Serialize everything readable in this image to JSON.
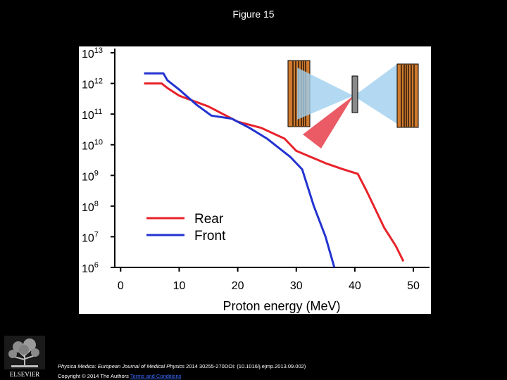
{
  "figure_title": "Figure 15",
  "logo_text": "ELSEVIER",
  "citation": {
    "journal": "Physica Medica: European Journal of Medical Physics",
    "details": " 2014 30255-270DOI: (10.1016/j.ejmp.2013.09.002)"
  },
  "copyright": {
    "text": "Copyright © 2014 The Authors ",
    "link": "Terms and Conditions"
  },
  "colors": {
    "rear": "#e8222a",
    "front": "#2333d0",
    "axis": "#000000"
  },
  "chart_data": {
    "type": "line",
    "title": "",
    "xlabel": "Proton energy (MeV)",
    "ylabel": "",
    "xlim": [
      -1,
      53
    ],
    "ylim_log10": [
      6,
      13
    ],
    "x_ticks": [
      0,
      10,
      20,
      30,
      40,
      50
    ],
    "y_ticks": [
      {
        "exp": 13,
        "base": "10",
        "sup": "13"
      },
      {
        "exp": 12,
        "base": "10",
        "sup": "12"
      },
      {
        "exp": 11,
        "base": "10",
        "sup": "11"
      },
      {
        "exp": 10,
        "base": "10",
        "sup": "10"
      },
      {
        "exp": 9,
        "base": "10",
        "sup": "9"
      },
      {
        "exp": 8,
        "base": "10",
        "sup": "8"
      },
      {
        "exp": 7,
        "base": "10",
        "sup": "7"
      },
      {
        "exp": 6,
        "base": "10",
        "sup": "6"
      }
    ],
    "legend": [
      "Rear",
      "Front"
    ],
    "legend_position": "bottom-left",
    "series": [
      {
        "name": "Rear",
        "x": [
          4,
          7,
          8,
          10,
          15,
          20,
          24,
          28,
          30,
          35,
          38,
          40.5,
          42,
          45,
          47,
          48.3
        ],
        "log10": [
          12.0,
          12.0,
          11.85,
          11.6,
          11.25,
          10.75,
          10.55,
          10.2,
          9.8,
          9.4,
          9.2,
          9.05,
          8.5,
          7.3,
          6.7,
          6.2
        ]
      },
      {
        "name": "Front",
        "x": [
          4,
          7.3,
          8,
          10,
          13,
          15.5,
          19,
          22,
          25,
          27,
          29,
          31,
          33,
          35,
          36.5
        ],
        "log10": [
          12.33,
          12.33,
          12.1,
          11.8,
          11.3,
          10.95,
          10.85,
          10.55,
          10.2,
          9.9,
          9.6,
          9.2,
          8.0,
          7.0,
          6.0
        ]
      }
    ]
  }
}
